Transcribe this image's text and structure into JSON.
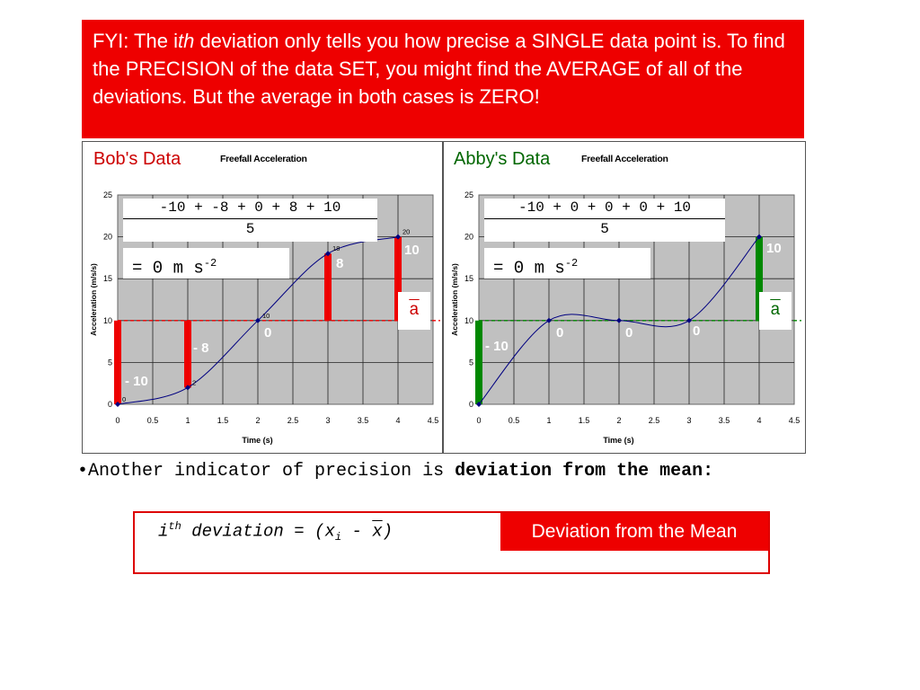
{
  "fyi": {
    "prefix": "FYI:  The i",
    "th": "th",
    "rest": " deviation only tells you how precise a SINGLE data point is.  To find the PRECISION of the data SET, you might find the AVERAGE of all of the deviations.  But the average in both cases is ZERO!"
  },
  "bob": {
    "name": "Bob's Data",
    "fraction_numerator": "-10 + -8 + 0 + 8 + 10",
    "fraction_denominator": "5",
    "result_prefix": "= 0 m s",
    "result_exp": "-2",
    "abar": "a",
    "deviation_labels": [
      "- 10",
      "- 8",
      "0",
      "8",
      "10"
    ],
    "bar_color": "#ee0000"
  },
  "abby": {
    "name": "Abby's Data",
    "fraction_numerator": "-10 + 0 + 0 + 0 + 10",
    "fraction_denominator": "5",
    "result_prefix": "= 0 m s",
    "result_exp": "-2",
    "abar": "a",
    "deviation_labels": [
      "- 10",
      "0",
      "0",
      "0",
      "10"
    ],
    "bar_color": "#008800"
  },
  "bullet": {
    "glyph": "•",
    "text": "Another indicator of precision is ",
    "bold": "deviation from the mean:"
  },
  "formula": {
    "i": "i",
    "th": "th",
    "middle": " deviation = (x",
    "sub": "i",
    "minus": " - ",
    "xbar": "x",
    "close": ")"
  },
  "deviation_tag": "Deviation from the Mean",
  "chart_data": [
    {
      "type": "scatter",
      "title": "Freefall Acceleration",
      "xlabel": "Time (s)",
      "ylabel": "Acceleration (m/s/s)",
      "xlim": [
        0,
        4.5
      ],
      "ylim": [
        0,
        25
      ],
      "xticks": [
        0,
        0.5,
        1,
        1.5,
        2,
        2.5,
        3,
        3.5,
        4,
        4.5
      ],
      "yticks": [
        0,
        5,
        10,
        15,
        20,
        25
      ],
      "grid": true,
      "mean": 10,
      "x": [
        0,
        1,
        2,
        3,
        4
      ],
      "y": [
        0,
        2,
        10,
        18,
        20
      ],
      "point_labels": [
        "0",
        "2",
        "10",
        "18",
        "20"
      ]
    },
    {
      "type": "scatter",
      "title": "Freefall Acceleration",
      "xlabel": "Time (s)",
      "ylabel": "Acceleration (m/s/s)",
      "xlim": [
        0,
        4.5
      ],
      "ylim": [
        0,
        25
      ],
      "xticks": [
        0,
        0.5,
        1,
        1.5,
        2,
        2.5,
        3,
        3.5,
        4,
        4.5
      ],
      "yticks": [
        0,
        5,
        10,
        15,
        20,
        25
      ],
      "grid": true,
      "mean": 10,
      "x": [
        0,
        1,
        2,
        3,
        4
      ],
      "y": [
        0,
        10,
        10,
        10,
        20
      ],
      "point_labels": []
    }
  ]
}
